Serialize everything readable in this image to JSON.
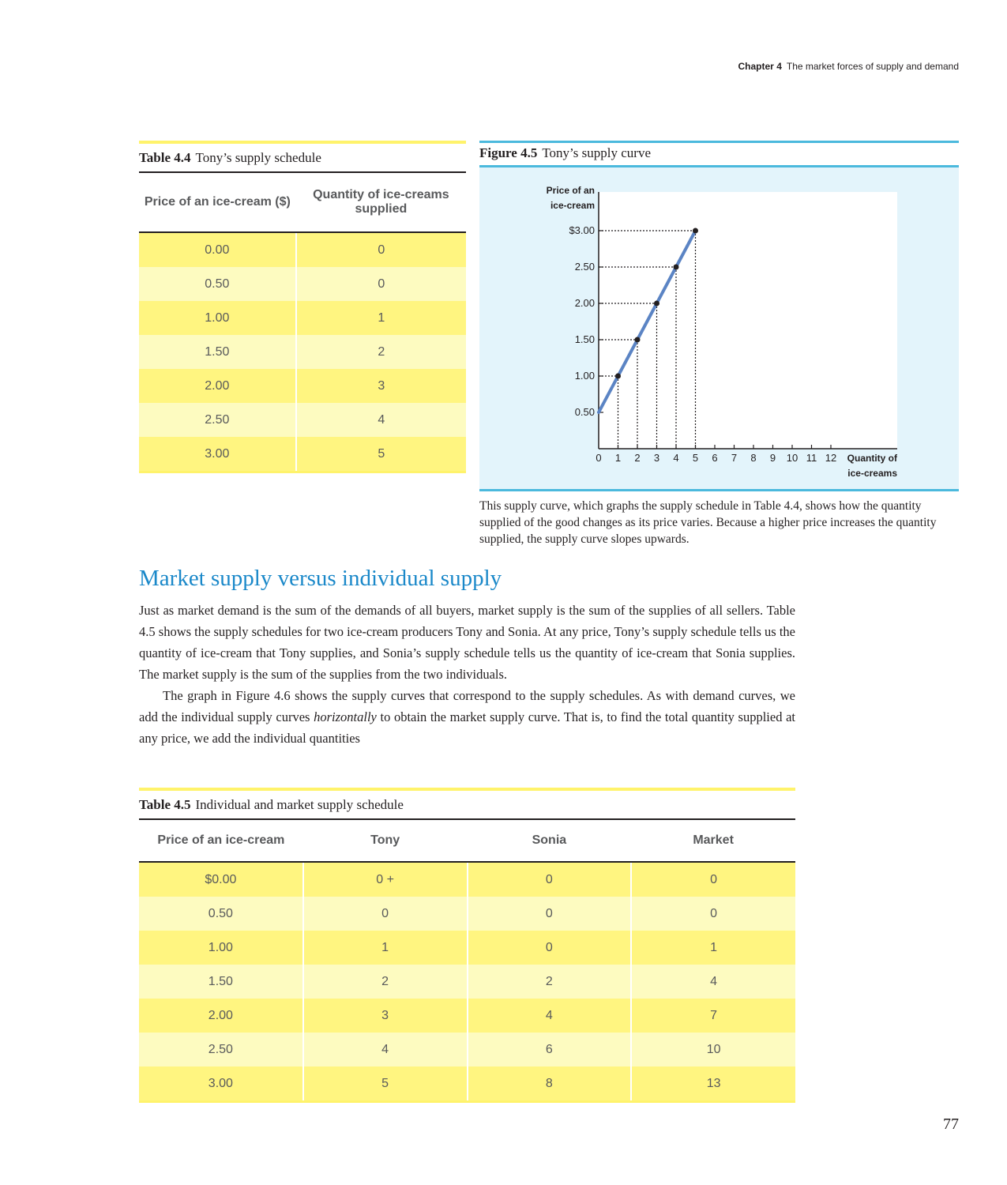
{
  "running_head": {
    "chapter": "Chapter 4",
    "title": "The market forces of supply and demand"
  },
  "table44": {
    "label": "Table 4.4",
    "title": "Tony’s supply schedule",
    "headers": [
      "Price of an ice-cream ($)",
      "Quantity of ice-creams supplied"
    ],
    "rows": [
      [
        "0.00",
        "0"
      ],
      [
        "0.50",
        "0"
      ],
      [
        "1.00",
        "1"
      ],
      [
        "1.50",
        "2"
      ],
      [
        "2.00",
        "3"
      ],
      [
        "2.50",
        "4"
      ],
      [
        "3.00",
        "5"
      ]
    ]
  },
  "figure45": {
    "label": "Figure 4.5",
    "title": "Tony’s supply curve",
    "note": "This supply curve, which graphs the supply schedule in Table 4.4, shows how the quantity supplied of the good changes as its price varies. Because a higher price increases the quantity supplied, the supply curve slopes upwards."
  },
  "chart_data": {
    "type": "line",
    "title": "",
    "ylabel": "Price of an ice-cream",
    "xlabel": "Quantity of ice-creams",
    "x_ticks": [
      "0",
      "1",
      "2",
      "3",
      "4",
      "5",
      "6",
      "7",
      "8",
      "9",
      "10",
      "11",
      "12"
    ],
    "y_ticks": [
      "0.50",
      "1.00",
      "1.50",
      "2.00",
      "2.50",
      "$3.00"
    ],
    "xlim": [
      0,
      15.5
    ],
    "ylim": [
      0,
      3.5
    ],
    "series": [
      {
        "x": [
          0,
          1,
          2,
          3,
          4,
          5
        ],
        "y": [
          0.5,
          1.0,
          1.5,
          2.0,
          2.5,
          3.0
        ]
      }
    ],
    "points": [
      {
        "x": 1,
        "y": 1.0
      },
      {
        "x": 2,
        "y": 1.5
      },
      {
        "x": 3,
        "y": 2.0
      },
      {
        "x": 4,
        "y": 2.5
      },
      {
        "x": 5,
        "y": 3.0
      }
    ],
    "line_color": "#5b84c4",
    "grid": false
  },
  "section": {
    "title": "Market supply versus individual supply",
    "p1": "Just as market demand is the sum of the demands of all buyers, market supply is the sum of the supplies of all sellers. Table 4.5 shows the supply schedules for two ice-cream producers    Tony and Sonia. At any price, Tony’s supply schedule tells us the quantity of ice-cream that Tony supplies, and Sonia’s supply schedule tells us the quantity of ice-cream that Sonia supplies. The market supply is the sum of the supplies from the two individuals.",
    "p2_a": "The graph in Figure 4.6 shows the supply curves that correspond to the supply schedules. As with demand curves, we add the individual supply curves ",
    "p2_em": "horizontally",
    "p2_b": " to obtain the market supply curve. That is, to find the total quantity supplied at any price, we add the individual quantities"
  },
  "table45": {
    "label": "Table 4.5",
    "title": "Individual and market supply schedule",
    "headers": [
      "Price of an ice-cream",
      "Tony",
      "Sonia",
      "Market"
    ],
    "rows": [
      [
        "$0.00",
        "0 +",
        "0",
        "0"
      ],
      [
        "0.50",
        "0",
        "0",
        "0"
      ],
      [
        "1.00",
        "1",
        "0",
        "1"
      ],
      [
        "1.50",
        "2",
        "2",
        "4"
      ],
      [
        "2.00",
        "3",
        "4",
        "7"
      ],
      [
        "2.50",
        "4",
        "6",
        "10"
      ],
      [
        "3.00",
        "5",
        "8",
        "13"
      ]
    ]
  },
  "page_number": "77"
}
